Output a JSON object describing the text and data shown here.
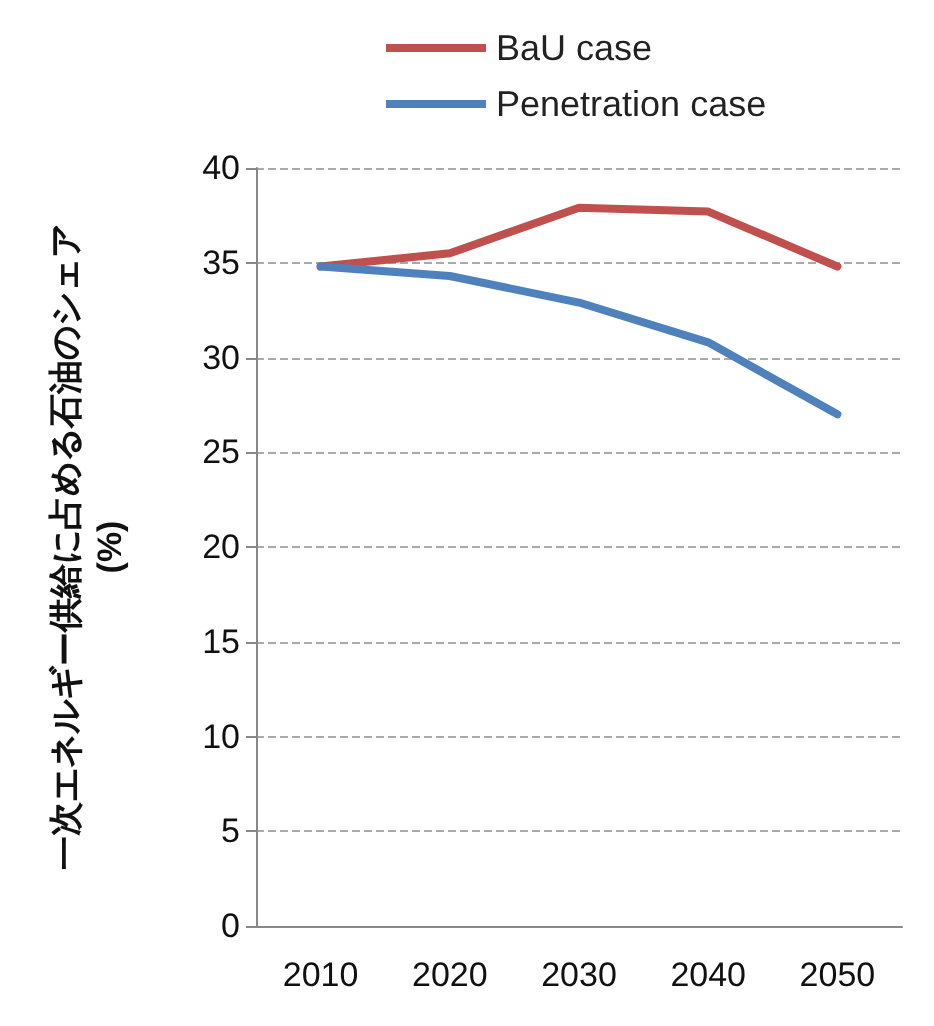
{
  "chart_data": {
    "type": "line",
    "ylabel": "一次エネルギー供給に占める石油のシェア\n(%)",
    "categories": [
      "2010",
      "2020",
      "2030",
      "2040",
      "2050"
    ],
    "series": [
      {
        "name": "BaU case",
        "color": "#c0504d",
        "values": [
          34.8,
          35.5,
          37.9,
          37.7,
          34.8
        ]
      },
      {
        "name": "Penetration case",
        "color": "#4f81bd",
        "values": [
          34.8,
          34.3,
          32.9,
          30.8,
          27.0
        ]
      }
    ],
    "ylim": [
      0,
      40
    ],
    "yticks": [
      0,
      5,
      10,
      15,
      20,
      25,
      30,
      35,
      40
    ],
    "grid": "y",
    "legend": "top",
    "marker": "none",
    "line_style": "solid"
  }
}
